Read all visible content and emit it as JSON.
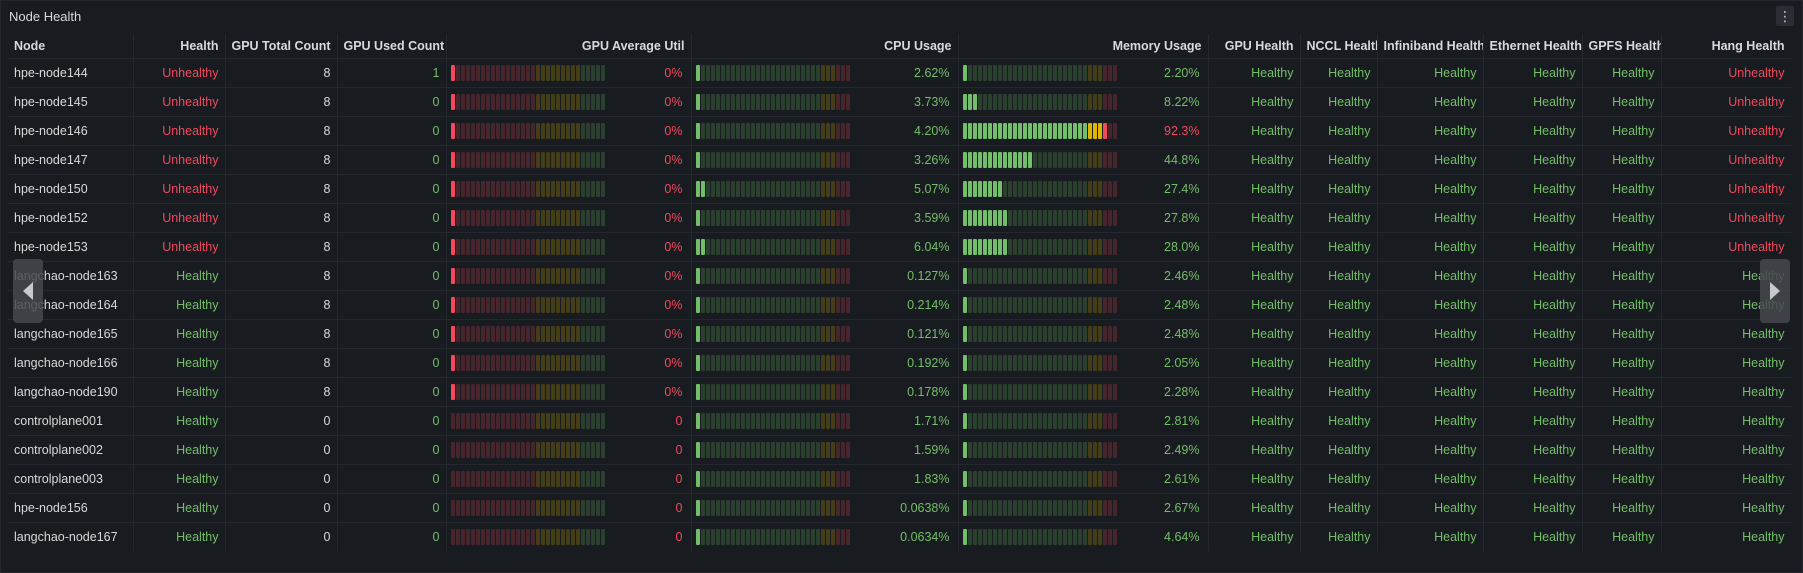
{
  "panel": {
    "title": "Node Health",
    "menu_icon": "kebab-menu-icon"
  },
  "columns": [
    "Node",
    "Health",
    "GPU Total Count",
    "GPU Used Count",
    "GPU Average Util",
    "CPU Usage",
    "Memory Usage",
    "GPU Health",
    "NCCL Health",
    "Infiniband Health",
    "Ethernet Health",
    "GPFS Health",
    "Hang Health"
  ],
  "colors": {
    "healthy": "#73bf69",
    "unhealthy": "#f2495c",
    "gauge_green": "#73bf69",
    "gauge_orange": "#e0b400",
    "gauge_red": "#f2495c"
  },
  "rows": [
    {
      "node": "hpe-node144",
      "health": "Unhealthy",
      "gpu_total": "8",
      "gpu_used": "1",
      "gpu_util": "0%",
      "cpu": "2.62%",
      "mem": "2.20%",
      "gpu_health": "Healthy",
      "nccl": "Healthy",
      "ib": "Healthy",
      "eth": "Healthy",
      "gpfs": "Healthy",
      "hang": "Unhealthy"
    },
    {
      "node": "hpe-node145",
      "health": "Unhealthy",
      "gpu_total": "8",
      "gpu_used": "0",
      "gpu_util": "0%",
      "cpu": "3.73%",
      "mem": "8.22%",
      "gpu_health": "Healthy",
      "nccl": "Healthy",
      "ib": "Healthy",
      "eth": "Healthy",
      "gpfs": "Healthy",
      "hang": "Unhealthy"
    },
    {
      "node": "hpe-node146",
      "health": "Unhealthy",
      "gpu_total": "8",
      "gpu_used": "0",
      "gpu_util": "0%",
      "cpu": "4.20%",
      "mem": "92.3%",
      "gpu_health": "Healthy",
      "nccl": "Healthy",
      "ib": "Healthy",
      "eth": "Healthy",
      "gpfs": "Healthy",
      "hang": "Unhealthy"
    },
    {
      "node": "hpe-node147",
      "health": "Unhealthy",
      "gpu_total": "8",
      "gpu_used": "0",
      "gpu_util": "0%",
      "cpu": "3.26%",
      "mem": "44.8%",
      "gpu_health": "Healthy",
      "nccl": "Healthy",
      "ib": "Healthy",
      "eth": "Healthy",
      "gpfs": "Healthy",
      "hang": "Unhealthy"
    },
    {
      "node": "hpe-node150",
      "health": "Unhealthy",
      "gpu_total": "8",
      "gpu_used": "0",
      "gpu_util": "0%",
      "cpu": "5.07%",
      "mem": "27.4%",
      "gpu_health": "Healthy",
      "nccl": "Healthy",
      "ib": "Healthy",
      "eth": "Healthy",
      "gpfs": "Healthy",
      "hang": "Unhealthy"
    },
    {
      "node": "hpe-node152",
      "health": "Unhealthy",
      "gpu_total": "8",
      "gpu_used": "0",
      "gpu_util": "0%",
      "cpu": "3.59%",
      "mem": "27.8%",
      "gpu_health": "Healthy",
      "nccl": "Healthy",
      "ib": "Healthy",
      "eth": "Healthy",
      "gpfs": "Healthy",
      "hang": "Unhealthy"
    },
    {
      "node": "hpe-node153",
      "health": "Unhealthy",
      "gpu_total": "8",
      "gpu_used": "0",
      "gpu_util": "0%",
      "cpu": "6.04%",
      "mem": "28.0%",
      "gpu_health": "Healthy",
      "nccl": "Healthy",
      "ib": "Healthy",
      "eth": "Healthy",
      "gpfs": "Healthy",
      "hang": "Unhealthy"
    },
    {
      "node": "langchao-node163",
      "health": "Healthy",
      "gpu_total": "8",
      "gpu_used": "0",
      "gpu_util": "0%",
      "cpu": "0.127%",
      "mem": "2.46%",
      "gpu_health": "Healthy",
      "nccl": "Healthy",
      "ib": "Healthy",
      "eth": "Healthy",
      "gpfs": "Healthy",
      "hang": "Healthy"
    },
    {
      "node": "langchao-node164",
      "health": "Healthy",
      "gpu_total": "8",
      "gpu_used": "0",
      "gpu_util": "0%",
      "cpu": "0.214%",
      "mem": "2.48%",
      "gpu_health": "Healthy",
      "nccl": "Healthy",
      "ib": "Healthy",
      "eth": "Healthy",
      "gpfs": "Healthy",
      "hang": "Healthy"
    },
    {
      "node": "langchao-node165",
      "health": "Healthy",
      "gpu_total": "8",
      "gpu_used": "0",
      "gpu_util": "0%",
      "cpu": "0.121%",
      "mem": "2.48%",
      "gpu_health": "Healthy",
      "nccl": "Healthy",
      "ib": "Healthy",
      "eth": "Healthy",
      "gpfs": "Healthy",
      "hang": "Healthy"
    },
    {
      "node": "langchao-node166",
      "health": "Healthy",
      "gpu_total": "8",
      "gpu_used": "0",
      "gpu_util": "0%",
      "cpu": "0.192%",
      "mem": "2.05%",
      "gpu_health": "Healthy",
      "nccl": "Healthy",
      "ib": "Healthy",
      "eth": "Healthy",
      "gpfs": "Healthy",
      "hang": "Healthy"
    },
    {
      "node": "langchao-node190",
      "health": "Healthy",
      "gpu_total": "8",
      "gpu_used": "0",
      "gpu_util": "0%",
      "cpu": "0.178%",
      "mem": "2.28%",
      "gpu_health": "Healthy",
      "nccl": "Healthy",
      "ib": "Healthy",
      "eth": "Healthy",
      "gpfs": "Healthy",
      "hang": "Healthy"
    },
    {
      "node": "controlplane001",
      "health": "Healthy",
      "gpu_total": "0",
      "gpu_used": "0",
      "gpu_util": "0",
      "cpu": "1.71%",
      "mem": "2.81%",
      "gpu_health": "Healthy",
      "nccl": "Healthy",
      "ib": "Healthy",
      "eth": "Healthy",
      "gpfs": "Healthy",
      "hang": "Healthy"
    },
    {
      "node": "controlplane002",
      "health": "Healthy",
      "gpu_total": "0",
      "gpu_used": "0",
      "gpu_util": "0",
      "cpu": "1.59%",
      "mem": "2.49%",
      "gpu_health": "Healthy",
      "nccl": "Healthy",
      "ib": "Healthy",
      "eth": "Healthy",
      "gpfs": "Healthy",
      "hang": "Healthy"
    },
    {
      "node": "controlplane003",
      "health": "Healthy",
      "gpu_total": "0",
      "gpu_used": "0",
      "gpu_util": "0",
      "cpu": "1.83%",
      "mem": "2.61%",
      "gpu_health": "Healthy",
      "nccl": "Healthy",
      "ib": "Healthy",
      "eth": "Healthy",
      "gpfs": "Healthy",
      "hang": "Healthy"
    },
    {
      "node": "hpe-node156",
      "health": "Healthy",
      "gpu_total": "0",
      "gpu_used": "0",
      "gpu_util": "0",
      "cpu": "0.0638%",
      "mem": "2.67%",
      "gpu_health": "Healthy",
      "nccl": "Healthy",
      "ib": "Healthy",
      "eth": "Healthy",
      "gpfs": "Healthy",
      "hang": "Healthy"
    },
    {
      "node": "langchao-node167",
      "health": "Healthy",
      "gpu_total": "0",
      "gpu_used": "0",
      "gpu_util": "0",
      "cpu": "0.0634%",
      "mem": "4.64%",
      "gpu_health": "Healthy",
      "nccl": "Healthy",
      "ib": "Healthy",
      "eth": "Healthy",
      "gpfs": "Healthy",
      "hang": "Healthy"
    }
  ],
  "nav": {
    "left_icon": "chevron-left-icon",
    "right_icon": "chevron-right-icon"
  }
}
